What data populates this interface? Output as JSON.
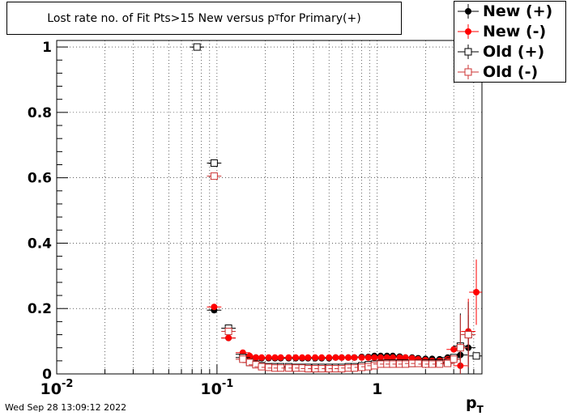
{
  "title_prefix": "Lost rate no. of Fit Pts>15 New versus p",
  "title_sub": "T",
  "title_suffix": " for Primary(+)",
  "timestamp": "Wed Sep 28 13:09:12 2022",
  "legend": [
    {
      "label": "New (+)",
      "color": "#000000",
      "marker": "filled-circle"
    },
    {
      "label": "New (-)",
      "color": "#ff0000",
      "marker": "filled-circle"
    },
    {
      "label": "Old (+)",
      "color": "#000000",
      "marker": "open-square"
    },
    {
      "label": "Old (-)",
      "color": "#cc3333",
      "marker": "open-square"
    }
  ],
  "chart_data": {
    "type": "scatter",
    "xscale": "log",
    "xlim": [
      0.01,
      4.5
    ],
    "ylim": [
      0,
      1.02
    ],
    "grid": true,
    "xlabel_main": "p",
    "xlabel_sub": "T",
    "yticks": [
      {
        "value": 0,
        "label": "0"
      },
      {
        "value": 0.2,
        "label": "0.2"
      },
      {
        "value": 0.4,
        "label": "0.4"
      },
      {
        "value": 0.6,
        "label": "0.6"
      },
      {
        "value": 0.8,
        "label": "0.8"
      },
      {
        "value": 1,
        "label": "1"
      }
    ],
    "xticks": [
      {
        "value": 0.01,
        "base": "10",
        "exp": "-2"
      },
      {
        "value": 0.1,
        "base": "10",
        "exp": "-1"
      },
      {
        "value": 1,
        "base": "1",
        "exp": ""
      }
    ],
    "series": [
      {
        "name": "New (+)",
        "color": "#000000",
        "marker": "filled-circle",
        "points": [
          [
            0.096,
            0.195
          ],
          [
            0.118,
            0.11
          ],
          [
            0.145,
            0.06
          ],
          [
            0.16,
            0.052
          ],
          [
            0.175,
            0.05
          ],
          [
            0.19,
            0.048
          ],
          [
            0.21,
            0.048
          ],
          [
            0.23,
            0.048
          ],
          [
            0.25,
            0.048
          ],
          [
            0.28,
            0.048
          ],
          [
            0.31,
            0.048
          ],
          [
            0.34,
            0.048
          ],
          [
            0.37,
            0.048
          ],
          [
            0.41,
            0.048
          ],
          [
            0.45,
            0.048
          ],
          [
            0.5,
            0.048
          ],
          [
            0.55,
            0.05
          ],
          [
            0.6,
            0.05
          ],
          [
            0.66,
            0.05
          ],
          [
            0.72,
            0.05
          ],
          [
            0.8,
            0.052
          ],
          [
            0.88,
            0.052
          ],
          [
            0.96,
            0.055
          ],
          [
            1.05,
            0.055
          ],
          [
            1.15,
            0.055
          ],
          [
            1.25,
            0.055
          ],
          [
            1.38,
            0.053
          ],
          [
            1.5,
            0.05
          ],
          [
            1.65,
            0.05
          ],
          [
            1.8,
            0.048
          ],
          [
            2.0,
            0.046
          ],
          [
            2.2,
            0.046
          ],
          [
            2.45,
            0.045
          ],
          [
            2.75,
            0.05
          ],
          [
            3.0,
            0.045
          ],
          [
            3.3,
            0.058
          ],
          [
            3.7,
            0.08
          ]
        ]
      },
      {
        "name": "New (-)",
        "color": "#ff0000",
        "marker": "filled-circle",
        "points": [
          [
            0.096,
            0.205
          ],
          [
            0.118,
            0.11
          ],
          [
            0.145,
            0.065
          ],
          [
            0.16,
            0.055
          ],
          [
            0.175,
            0.05
          ],
          [
            0.19,
            0.05
          ],
          [
            0.21,
            0.05
          ],
          [
            0.23,
            0.05
          ],
          [
            0.25,
            0.05
          ],
          [
            0.28,
            0.05
          ],
          [
            0.31,
            0.05
          ],
          [
            0.34,
            0.05
          ],
          [
            0.37,
            0.05
          ],
          [
            0.41,
            0.05
          ],
          [
            0.45,
            0.05
          ],
          [
            0.5,
            0.05
          ],
          [
            0.55,
            0.05
          ],
          [
            0.6,
            0.05
          ],
          [
            0.66,
            0.05
          ],
          [
            0.72,
            0.05
          ],
          [
            0.8,
            0.05
          ],
          [
            0.88,
            0.05
          ],
          [
            0.96,
            0.05
          ],
          [
            1.05,
            0.05
          ],
          [
            1.15,
            0.05
          ],
          [
            1.25,
            0.05
          ],
          [
            1.38,
            0.05
          ],
          [
            1.5,
            0.05
          ],
          [
            1.65,
            0.048
          ],
          [
            1.8,
            0.045
          ],
          [
            2.0,
            0.042
          ],
          [
            2.2,
            0.04
          ],
          [
            2.45,
            0.04
          ],
          [
            2.75,
            0.045
          ],
          [
            3.0,
            0.075
          ],
          [
            3.3,
            0.025
          ],
          [
            3.7,
            0.13
          ],
          [
            4.15,
            0.25
          ]
        ]
      },
      {
        "name": "Old (+)",
        "color": "#000000",
        "marker": "open-square",
        "points": [
          [
            0.075,
            1.0
          ],
          [
            0.096,
            0.645
          ],
          [
            0.118,
            0.14
          ],
          [
            0.145,
            0.05
          ],
          [
            0.16,
            0.035
          ],
          [
            0.175,
            0.03
          ],
          [
            0.19,
            0.025
          ],
          [
            0.21,
            0.022
          ],
          [
            0.23,
            0.022
          ],
          [
            0.25,
            0.022
          ],
          [
            0.28,
            0.022
          ],
          [
            0.31,
            0.02
          ],
          [
            0.34,
            0.02
          ],
          [
            0.37,
            0.02
          ],
          [
            0.41,
            0.02
          ],
          [
            0.45,
            0.02
          ],
          [
            0.5,
            0.02
          ],
          [
            0.55,
            0.02
          ],
          [
            0.6,
            0.02
          ],
          [
            0.66,
            0.022
          ],
          [
            0.72,
            0.022
          ],
          [
            0.8,
            0.025
          ],
          [
            0.88,
            0.028
          ],
          [
            0.96,
            0.03
          ],
          [
            1.05,
            0.032
          ],
          [
            1.15,
            0.033
          ],
          [
            1.25,
            0.033
          ],
          [
            1.38,
            0.033
          ],
          [
            1.5,
            0.033
          ],
          [
            1.65,
            0.032
          ],
          [
            1.8,
            0.033
          ],
          [
            2.0,
            0.033
          ],
          [
            2.2,
            0.033
          ],
          [
            2.45,
            0.033
          ],
          [
            2.75,
            0.035
          ],
          [
            3.0,
            0.05
          ],
          [
            3.3,
            0.085
          ],
          [
            3.7,
            0.12
          ],
          [
            4.15,
            0.055
          ]
        ]
      },
      {
        "name": "Old (-)",
        "color": "#cc3333",
        "marker": "open-square",
        "points": [
          [
            0.096,
            0.605
          ],
          [
            0.118,
            0.13
          ],
          [
            0.145,
            0.045
          ],
          [
            0.16,
            0.035
          ],
          [
            0.175,
            0.028
          ],
          [
            0.19,
            0.022
          ],
          [
            0.21,
            0.02
          ],
          [
            0.23,
            0.018
          ],
          [
            0.25,
            0.018
          ],
          [
            0.28,
            0.018
          ],
          [
            0.31,
            0.018
          ],
          [
            0.34,
            0.018
          ],
          [
            0.37,
            0.016
          ],
          [
            0.41,
            0.016
          ],
          [
            0.45,
            0.016
          ],
          [
            0.5,
            0.016
          ],
          [
            0.55,
            0.016
          ],
          [
            0.6,
            0.016
          ],
          [
            0.66,
            0.018
          ],
          [
            0.72,
            0.018
          ],
          [
            0.8,
            0.02
          ],
          [
            0.88,
            0.022
          ],
          [
            0.96,
            0.025
          ],
          [
            1.05,
            0.03
          ],
          [
            1.15,
            0.03
          ],
          [
            1.25,
            0.03
          ],
          [
            1.38,
            0.03
          ],
          [
            1.5,
            0.03
          ],
          [
            1.65,
            0.032
          ],
          [
            1.8,
            0.032
          ],
          [
            2.0,
            0.03
          ],
          [
            2.2,
            0.03
          ],
          [
            2.45,
            0.03
          ],
          [
            2.75,
            0.032
          ],
          [
            3.0,
            0.045
          ],
          [
            3.3,
            0.08
          ],
          [
            3.7,
            0.12
          ]
        ]
      }
    ]
  }
}
